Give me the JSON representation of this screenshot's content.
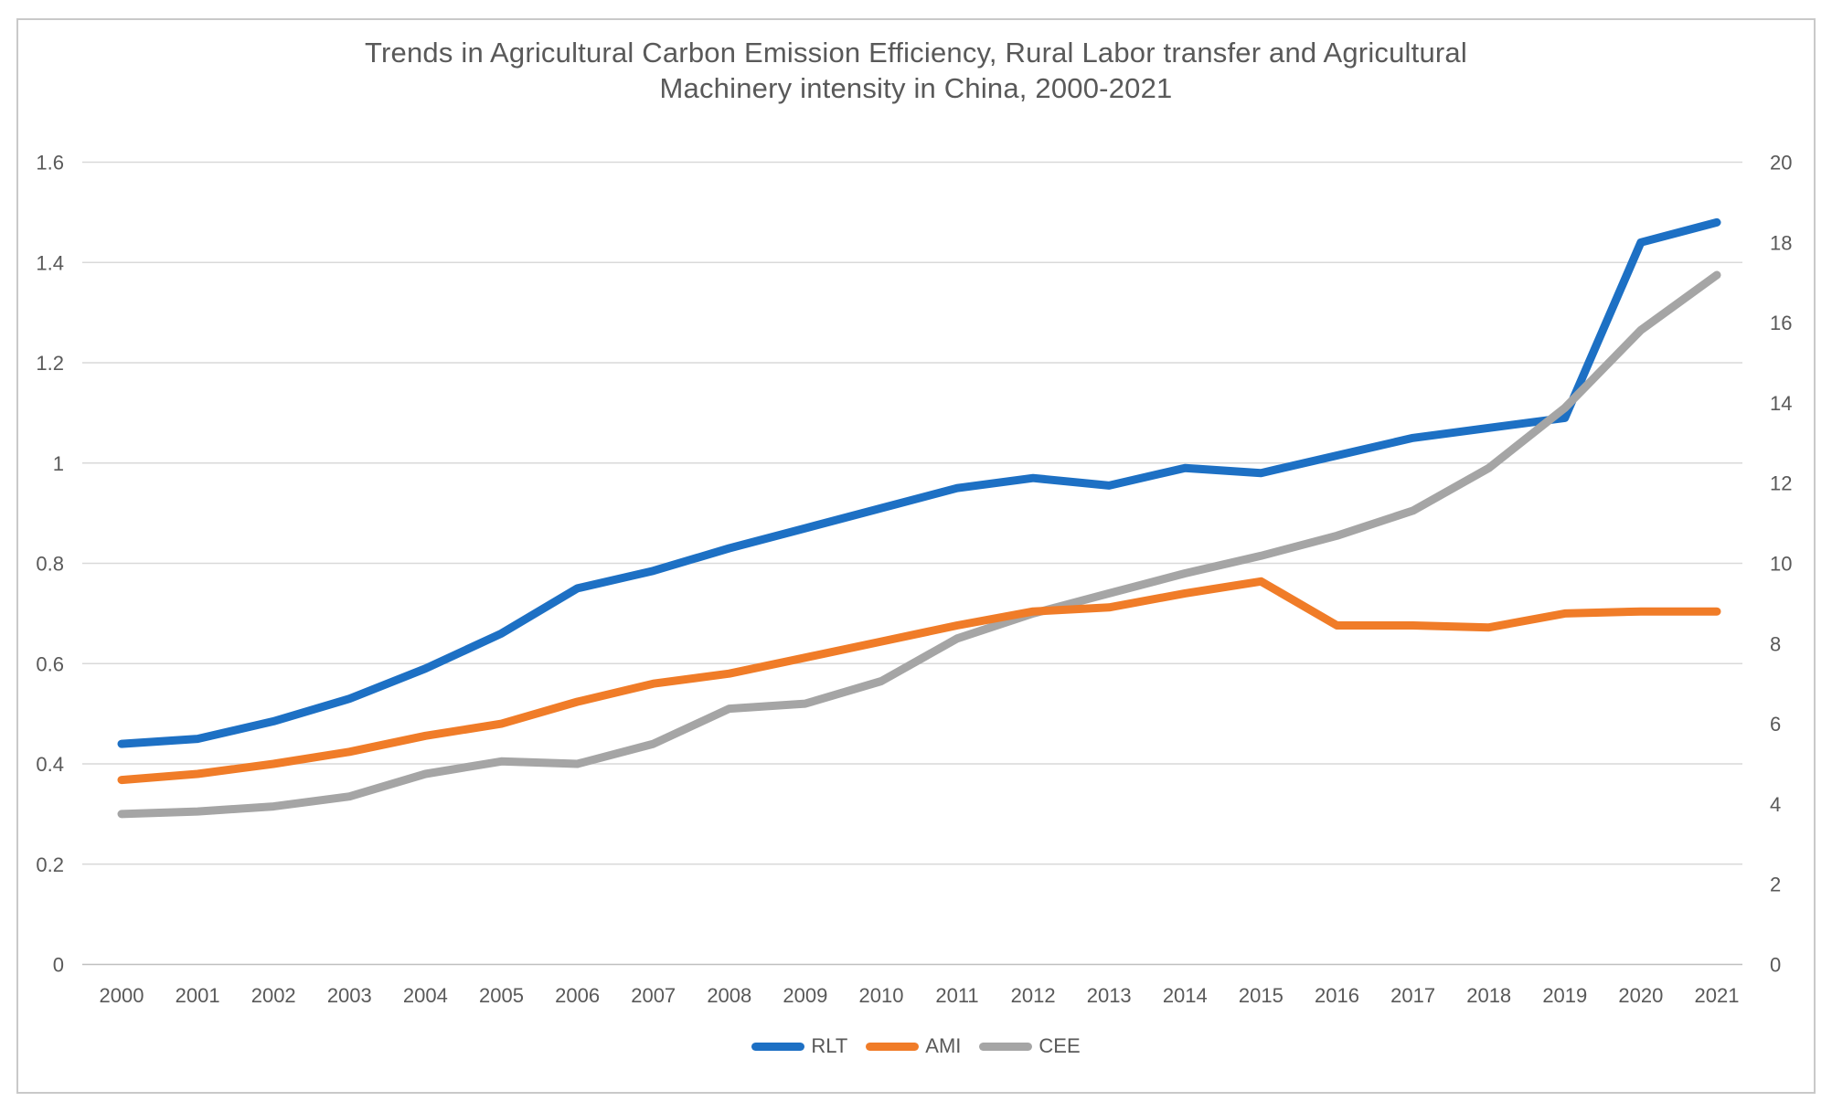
{
  "title": {
    "line1": "Trends in Agricultural Carbon Emission Efficiency, Rural Labor transfer and Agricultural",
    "line2": "Machinery  intensity in China, 2000-2021"
  },
  "chart_data": {
    "type": "line",
    "title": "Trends in Agricultural Carbon Emission Efficiency, Rural Labor transfer and Agricultural Machinery  intensity in China, 2000-2021",
    "x": [
      2000,
      2001,
      2002,
      2003,
      2004,
      2005,
      2006,
      2007,
      2008,
      2009,
      2010,
      2011,
      2012,
      2013,
      2014,
      2015,
      2016,
      2017,
      2018,
      2019,
      2020,
      2021
    ],
    "series": [
      {
        "name": "RLT",
        "color": "#1d70c4",
        "axis": "left",
        "values": [
          0.44,
          0.45,
          0.485,
          0.53,
          0.59,
          0.66,
          0.75,
          0.785,
          0.83,
          0.87,
          0.91,
          0.95,
          0.97,
          0.955,
          0.99,
          0.98,
          1.015,
          1.05,
          1.07,
          1.09,
          1.44,
          1.48
        ]
      },
      {
        "name": "AMI",
        "color": "#f07c28",
        "axis": "right",
        "values": [
          4.6,
          4.75,
          5.0,
          5.3,
          5.7,
          6.0,
          6.55,
          7.0,
          7.25,
          7.65,
          8.05,
          8.45,
          8.8,
          8.9,
          9.25,
          9.55,
          8.45,
          8.45,
          8.4,
          8.75,
          8.8,
          8.8
        ]
      },
      {
        "name": "CEE",
        "color": "#a5a5a5",
        "axis": "left",
        "values": [
          0.3,
          0.305,
          0.315,
          0.335,
          0.38,
          0.405,
          0.4,
          0.44,
          0.51,
          0.52,
          0.565,
          0.65,
          0.7,
          0.74,
          0.78,
          0.815,
          0.855,
          0.905,
          0.99,
          1.11,
          1.265,
          1.375
        ]
      }
    ],
    "axes": {
      "left": {
        "min": 0,
        "max": 1.6,
        "step": 0.2,
        "tick_values": [
          0,
          0.2,
          0.4,
          0.6,
          0.8,
          1,
          1.2,
          1.4,
          1.6
        ],
        "tick_labels": [
          "0",
          "0.2",
          "0.4",
          "0.6",
          "0.8",
          "1",
          "1.2",
          "1.4",
          "1.6"
        ]
      },
      "right": {
        "min": 0,
        "max": 20,
        "step": 2,
        "tick_values": [
          0,
          2,
          4,
          6,
          8,
          10,
          12,
          14,
          16,
          18,
          20
        ],
        "tick_labels": [
          "0",
          "2",
          "4",
          "6",
          "8",
          "10",
          "12",
          "14",
          "16",
          "18",
          "20"
        ]
      }
    },
    "grid": true,
    "legend_position": "bottom",
    "grid_color": "#d9d9d9",
    "axis_line_color": "#bfbfbf",
    "text_color": "#595959"
  }
}
